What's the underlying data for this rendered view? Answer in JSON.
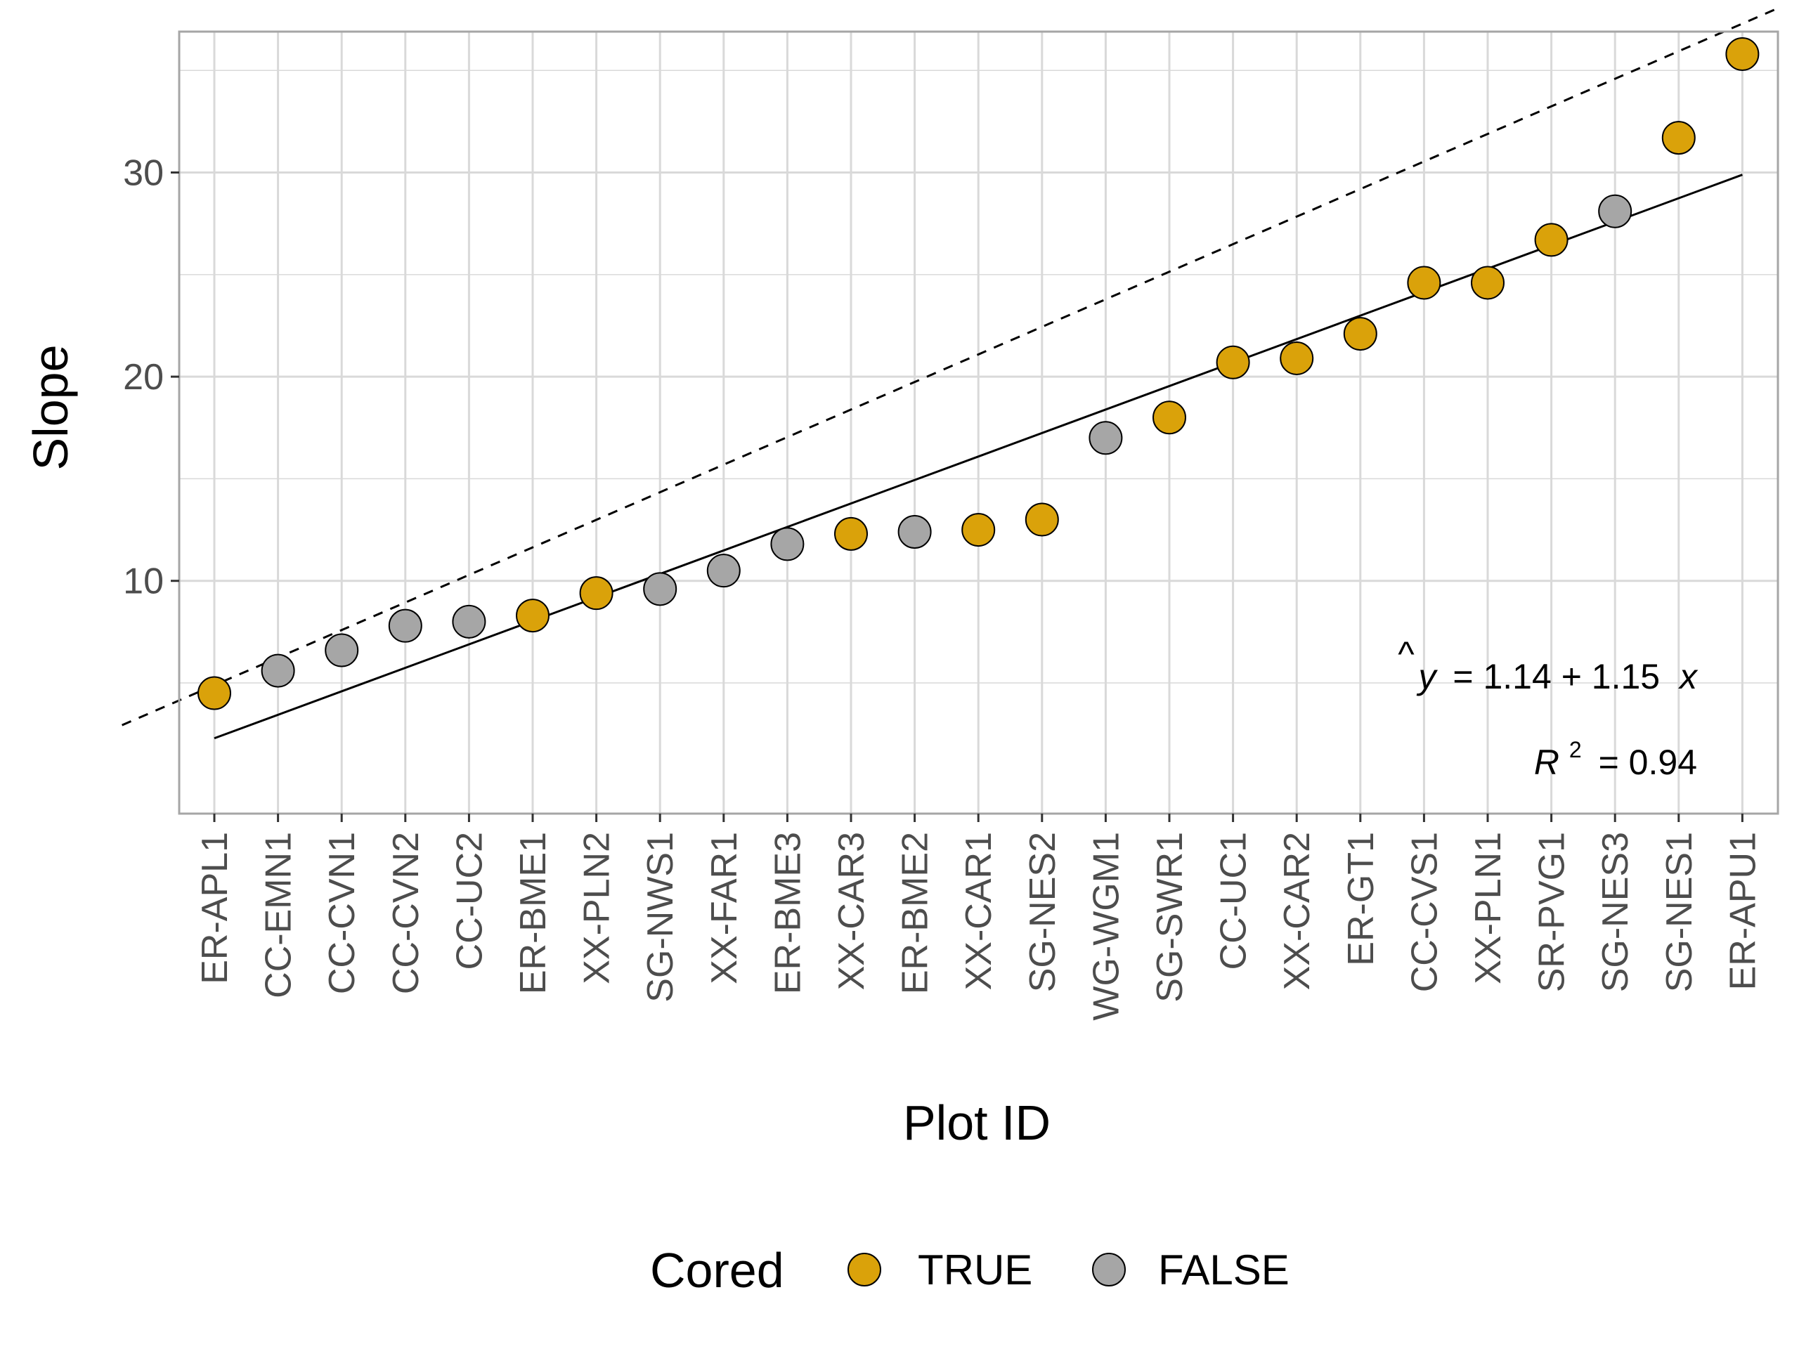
{
  "chart_data": {
    "type": "scatter",
    "xlabel": "Plot ID",
    "ylabel": "Slope",
    "categories": [
      "ER-APL1",
      "CC-EMN1",
      "CC-CVN1",
      "CC-CVN2",
      "CC-UC2",
      "ER-BME1",
      "XX-PLN2",
      "SG-NWS1",
      "XX-FAR1",
      "ER-BME3",
      "XX-CAR3",
      "ER-BME2",
      "XX-CAR1",
      "SG-NES2",
      "WG-WGM1",
      "SG-SWR1",
      "CC-UC1",
      "XX-CAR2",
      "ER-GT1",
      "CC-CVS1",
      "XX-PLN1",
      "SR-PVG1",
      "SG-NES3",
      "SG-NES1",
      "ER-APU1"
    ],
    "values": [
      4.5,
      5.6,
      6.6,
      7.8,
      8.0,
      8.3,
      9.4,
      9.6,
      10.5,
      11.8,
      12.3,
      12.4,
      12.5,
      13.0,
      17.0,
      18.0,
      20.7,
      20.9,
      22.1,
      24.6,
      24.6,
      26.7,
      28.1,
      31.7,
      35.8
    ],
    "cored": [
      true,
      false,
      false,
      false,
      false,
      true,
      true,
      false,
      false,
      false,
      true,
      false,
      true,
      true,
      false,
      true,
      true,
      true,
      true,
      true,
      true,
      true,
      false,
      true,
      true
    ],
    "ylim": [
      -1.4,
      36.9
    ],
    "yticks": [
      10,
      20,
      30
    ],
    "grid": true,
    "fit_line": {
      "intercept": 1.14,
      "slope": 1.15,
      "style": "solid"
    },
    "reference_line": {
      "intercept": 3.54,
      "slope": 1.35,
      "style": "dashed"
    },
    "annotation": {
      "equation_lhs": "y",
      "equation_rhs": "= 1.14 + 1.15",
      "equation_var": "x",
      "r2_label": "R",
      "r2_exp": "2",
      "r2_value": "= 0.94"
    },
    "legend": {
      "title": "Cored",
      "position": "bottom",
      "entries": [
        {
          "label": "TRUE",
          "color": "#DAA20A"
        },
        {
          "label": "FALSE",
          "color": "#A6A6A6"
        }
      ]
    },
    "colors": {
      "true": "#DAA20A",
      "false": "#A6A6A6",
      "grid": "#D9D9D9",
      "border": "#A6A6A6"
    }
  }
}
